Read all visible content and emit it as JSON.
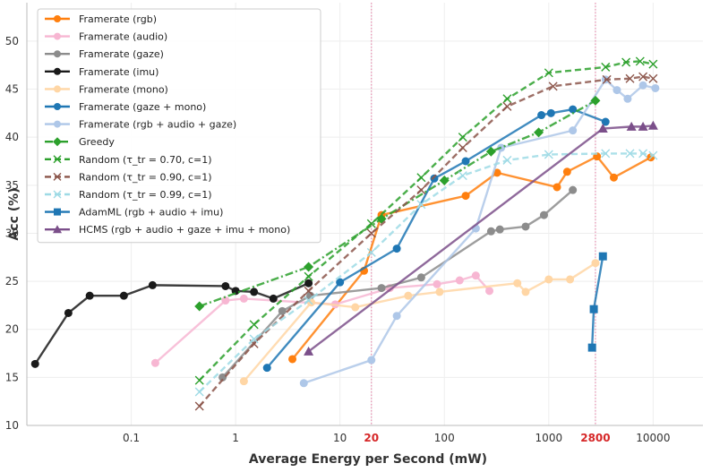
{
  "chart_data": {
    "type": "line",
    "xlabel": "Average Energy per Second (mW)",
    "ylabel": "Acc (%)",
    "xscale": "log",
    "xlim": [
      0.01,
      30000
    ],
    "ylim": [
      10,
      54
    ],
    "yticks": [
      10,
      15,
      20,
      25,
      30,
      35,
      40,
      45,
      50
    ],
    "xticks": [
      {
        "value": 0.1,
        "label": "0.1"
      },
      {
        "value": 1,
        "label": "1"
      },
      {
        "value": 10,
        "label": "10"
      },
      {
        "value": 20,
        "label": "20",
        "highlight": true
      },
      {
        "value": 100,
        "label": "100"
      },
      {
        "value": 1000,
        "label": "1000"
      },
      {
        "value": 2800,
        "label": "2800",
        "highlight": true
      },
      {
        "value": 10000,
        "label": "10000"
      }
    ],
    "vlines": [
      20,
      2800
    ],
    "grid": true,
    "legend_position": "top-left",
    "series": [
      {
        "name": "Framerate (rgb)",
        "color": "#ff7f0e",
        "marker": "circle",
        "dash": "solid",
        "x": [
          3.5,
          17,
          25,
          160,
          320,
          1200,
          1500,
          2900,
          4200,
          9500
        ],
        "y": [
          16.9,
          26.1,
          31.9,
          33.9,
          36.3,
          34.8,
          36.4,
          38.0,
          35.8,
          37.9
        ]
      },
      {
        "name": "Framerate (audio)",
        "color": "#f7b6d2",
        "marker": "circle",
        "dash": "solid",
        "x": [
          0.17,
          0.8,
          1.2,
          9,
          30,
          85,
          140,
          200,
          270
        ],
        "y": [
          16.5,
          23.0,
          23.2,
          22.6,
          24.3,
          24.7,
          25.1,
          25.6,
          24.0
        ]
      },
      {
        "name": "Framerate (gaze)",
        "color": "#8c8c8c",
        "marker": "circle",
        "dash": "solid",
        "x": [
          0.75,
          2.8,
          5.2,
          25,
          60,
          280,
          340,
          600,
          900,
          1700
        ],
        "y": [
          15.0,
          21.9,
          23.5,
          24.3,
          25.4,
          30.2,
          30.4,
          30.7,
          31.9,
          34.5
        ]
      },
      {
        "name": "Framerate (imu)",
        "color": "#1a1a1a",
        "marker": "circle",
        "dash": "solid",
        "x": [
          0.012,
          0.025,
          0.04,
          0.085,
          0.16,
          0.8,
          1.0,
          1.5,
          2.3,
          5
        ],
        "y": [
          16.4,
          21.7,
          23.5,
          23.5,
          24.6,
          24.5,
          24.0,
          23.9,
          23.2,
          24.8
        ]
      },
      {
        "name": "Framerate (mono)",
        "color": "#ffd6a5",
        "marker": "circle",
        "dash": "solid",
        "x": [
          1.2,
          5.3,
          14,
          45,
          90,
          500,
          600,
          1000,
          1600,
          2800
        ],
        "y": [
          14.6,
          22.8,
          22.3,
          23.5,
          23.9,
          24.8,
          23.9,
          25.2,
          25.2,
          26.9
        ]
      },
      {
        "name": "Framerate (gaze + mono)",
        "color": "#1f77b4",
        "marker": "circle",
        "dash": "solid",
        "x": [
          2.0,
          10,
          35,
          80,
          160,
          850,
          1050,
          1700,
          3500
        ],
        "y": [
          16.0,
          24.9,
          28.4,
          35.7,
          37.5,
          42.3,
          42.5,
          42.9,
          41.6
        ]
      },
      {
        "name": "Framerate (rgb + audio + gaze)",
        "color": "#aec7e8",
        "marker": "circle",
        "dash": "solid",
        "x": [
          4.5,
          20,
          35,
          200,
          350,
          1700,
          3500,
          4500,
          5700,
          8000,
          10500
        ],
        "y": [
          14.4,
          16.8,
          21.4,
          30.5,
          38.9,
          40.7,
          46.0,
          44.9,
          44.0,
          45.4,
          45.1
        ]
      },
      {
        "name": "Greedy",
        "color": "#2ca02c",
        "marker": "diamond",
        "dash": "dashdot",
        "x": [
          0.45,
          5,
          25,
          100,
          280,
          800,
          2800
        ],
        "y": [
          22.4,
          26.5,
          31.5,
          35.5,
          38.5,
          40.5,
          43.8
        ]
      },
      {
        "name": "Random (τ_tr = 0.70, c=1)",
        "color": "#2ca02c",
        "marker": "x",
        "dash": "dashed",
        "x": [
          0.45,
          1.5,
          5,
          20,
          60,
          150,
          400,
          1000,
          3500,
          5500,
          7500,
          10000
        ],
        "y": [
          14.7,
          20.5,
          25.5,
          31.0,
          35.8,
          40.0,
          44.0,
          46.7,
          47.3,
          47.8,
          47.9,
          47.6
        ]
      },
      {
        "name": "Random (τ_tr = 0.90, c=1)",
        "color": "#8c564b",
        "marker": "x",
        "dash": "dashed",
        "x": [
          0.45,
          1.5,
          5,
          20,
          60,
          150,
          400,
          1100,
          3600,
          6000,
          8000,
          10000
        ],
        "y": [
          12.0,
          18.5,
          24.0,
          30.0,
          34.5,
          38.9,
          43.2,
          45.3,
          46.0,
          46.1,
          46.3,
          46.1
        ]
      },
      {
        "name": "Random (τ_tr = 0.99, c=1)",
        "color": "#9edae5",
        "marker": "x",
        "dash": "dashed",
        "x": [
          0.45,
          1.5,
          5,
          20,
          60,
          150,
          400,
          1000,
          3500,
          6000,
          8000,
          10000
        ],
        "y": [
          13.5,
          19.0,
          23.0,
          28.0,
          33.0,
          36.0,
          37.6,
          38.2,
          38.3,
          38.3,
          38.3,
          38.1
        ]
      },
      {
        "name": "AdamML (rgb + audio + imu)",
        "color": "#1f77b4",
        "marker": "square",
        "dash": "solid",
        "x": [
          2600,
          2700,
          3300
        ],
        "y": [
          18.1,
          22.1,
          27.6
        ]
      },
      {
        "name": "HCMS (rgb + audio + gaze + imu + mono)",
        "color": "#7b4f8a",
        "marker": "triangle",
        "dash": "solid",
        "x": [
          5,
          3300,
          6200,
          8000,
          10000
        ],
        "y": [
          17.7,
          40.9,
          41.1,
          41.1,
          41.2
        ]
      }
    ]
  }
}
